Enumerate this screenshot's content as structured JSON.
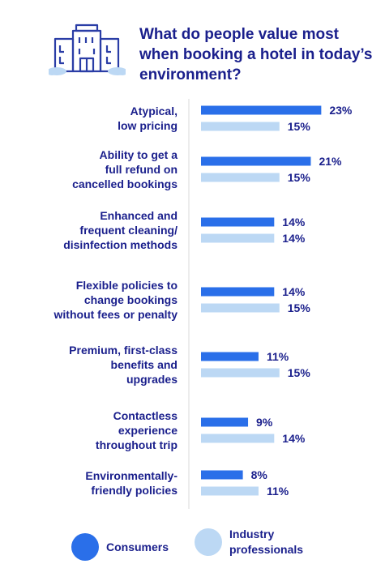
{
  "title": "What do people value most when booking a hotel in today’s environment?",
  "colors": {
    "consumers": "#2a6fe9",
    "industry": "#bcd8f4",
    "text": "#1a1f8c",
    "icon": "#2a3da6"
  },
  "chart_data": {
    "type": "bar",
    "orientation": "horizontal",
    "categories": [
      [
        "Atypical,",
        "low pricing"
      ],
      [
        "Ability to get a",
        "full refund on",
        "cancelled bookings"
      ],
      [
        "Enhanced and",
        "frequent cleaning/",
        "disinfection methods"
      ],
      [
        "Flexible policies to",
        "change bookings",
        "without fees or penalty"
      ],
      [
        "Premium, first-class",
        "benefits and",
        "upgrades"
      ],
      [
        "Contactless",
        "experience",
        "throughout trip"
      ],
      [
        "Environmentally-",
        "friendly policies"
      ]
    ],
    "series": [
      {
        "name": "Consumers",
        "color": "#2a6fe9",
        "values": [
          23,
          21,
          14,
          14,
          11,
          9,
          8
        ]
      },
      {
        "name": "Industry professionals",
        "color": "#bcd8f4",
        "values": [
          15,
          15,
          14,
          15,
          15,
          14,
          11
        ]
      }
    ],
    "value_suffix": "%",
    "xlim": [
      0,
      25
    ],
    "grid": false,
    "legend_position": "bottom"
  },
  "legend": [
    {
      "label_lines": [
        "Consumers"
      ],
      "color": "#2a6fe9"
    },
    {
      "label_lines": [
        "Industry",
        "professionals"
      ],
      "color": "#bcd8f4"
    }
  ]
}
